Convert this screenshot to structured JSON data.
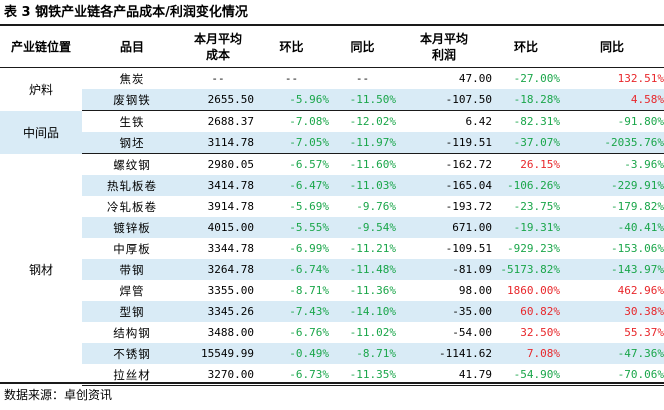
{
  "title": "表 3  钢铁产业链各产品成本/利润变化情况",
  "headers": {
    "stage": "产业链位置",
    "product": "品目",
    "cost_l1": "本月平均",
    "cost_l2": "成本",
    "cost_mom": "环比",
    "cost_yoy": "同比",
    "profit_l1": "本月平均",
    "profit_l2": "利润",
    "profit_mom": "环比",
    "profit_yoy": "同比"
  },
  "groups": {
    "g1": "炉料",
    "g2": "中间品",
    "g3": "钢材"
  },
  "rows": [
    {
      "product": "焦炭",
      "cost": "--",
      "cost_mom": "--",
      "cost_yoy": "--",
      "profit": "47.00",
      "profit_mom": "-27.00%",
      "profit_yoy": "132.51%"
    },
    {
      "product": "废钢铁",
      "cost": "2655.50",
      "cost_mom": "-5.96%",
      "cost_yoy": "-11.50%",
      "profit": "-107.50",
      "profit_mom": "-18.28%",
      "profit_yoy": "4.58%"
    },
    {
      "product": "生铁",
      "cost": "2688.37",
      "cost_mom": "-7.08%",
      "cost_yoy": "-12.02%",
      "profit": "6.42",
      "profit_mom": "-82.31%",
      "profit_yoy": "-91.80%"
    },
    {
      "product": "钢坯",
      "cost": "3114.78",
      "cost_mom": "-7.05%",
      "cost_yoy": "-11.97%",
      "profit": "-119.51",
      "profit_mom": "-37.07%",
      "profit_yoy": "-2035.76%"
    },
    {
      "product": "螺纹钢",
      "cost": "2980.05",
      "cost_mom": "-6.57%",
      "cost_yoy": "-11.60%",
      "profit": "-162.72",
      "profit_mom": "26.15%",
      "profit_yoy": "-3.96%"
    },
    {
      "product": "热轧板卷",
      "cost": "3414.78",
      "cost_mom": "-6.47%",
      "cost_yoy": "-11.03%",
      "profit": "-165.04",
      "profit_mom": "-106.26%",
      "profit_yoy": "-229.91%"
    },
    {
      "product": "冷轧板卷",
      "cost": "3914.78",
      "cost_mom": "-5.69%",
      "cost_yoy": "-9.76%",
      "profit": "-193.72",
      "profit_mom": "-23.75%",
      "profit_yoy": "-179.82%"
    },
    {
      "product": "镀锌板",
      "cost": "4015.00",
      "cost_mom": "-5.55%",
      "cost_yoy": "-9.54%",
      "profit": "671.00",
      "profit_mom": "-19.31%",
      "profit_yoy": "-40.41%"
    },
    {
      "product": "中厚板",
      "cost": "3344.78",
      "cost_mom": "-6.99%",
      "cost_yoy": "-11.21%",
      "profit": "-109.51",
      "profit_mom": "-929.23%",
      "profit_yoy": "-153.06%"
    },
    {
      "product": "带钢",
      "cost": "3264.78",
      "cost_mom": "-6.74%",
      "cost_yoy": "-11.48%",
      "profit": "-81.09",
      "profit_mom": "-5173.82%",
      "profit_yoy": "-143.97%"
    },
    {
      "product": "焊管",
      "cost": "3355.00",
      "cost_mom": "-8.71%",
      "cost_yoy": "-11.36%",
      "profit": "98.00",
      "profit_mom": "1860.00%",
      "profit_yoy": "462.96%"
    },
    {
      "product": "型钢",
      "cost": "3345.26",
      "cost_mom": "-7.43%",
      "cost_yoy": "-14.10%",
      "profit": "-35.00",
      "profit_mom": "60.82%",
      "profit_yoy": "30.38%"
    },
    {
      "product": "结构钢",
      "cost": "3488.00",
      "cost_mom": "-6.76%",
      "cost_yoy": "-11.02%",
      "profit": "-54.00",
      "profit_mom": "32.50%",
      "profit_yoy": "55.37%"
    },
    {
      "product": "不锈钢",
      "cost": "15549.99",
      "cost_mom": "-0.49%",
      "cost_yoy": "-8.71%",
      "profit": "-1141.62",
      "profit_mom": "7.08%",
      "profit_yoy": "-47.36%"
    },
    {
      "product": "拉丝材",
      "cost": "3270.00",
      "cost_mom": "-6.73%",
      "cost_yoy": "-11.35%",
      "profit": "41.79",
      "profit_mom": "-54.90%",
      "profit_yoy": "-70.06%"
    }
  ],
  "colors": {
    "positive": "#e8272b",
    "negative": "#1aa64a",
    "row_shade": "#d9ebf6"
  },
  "source": "数据来源：卓创资讯"
}
